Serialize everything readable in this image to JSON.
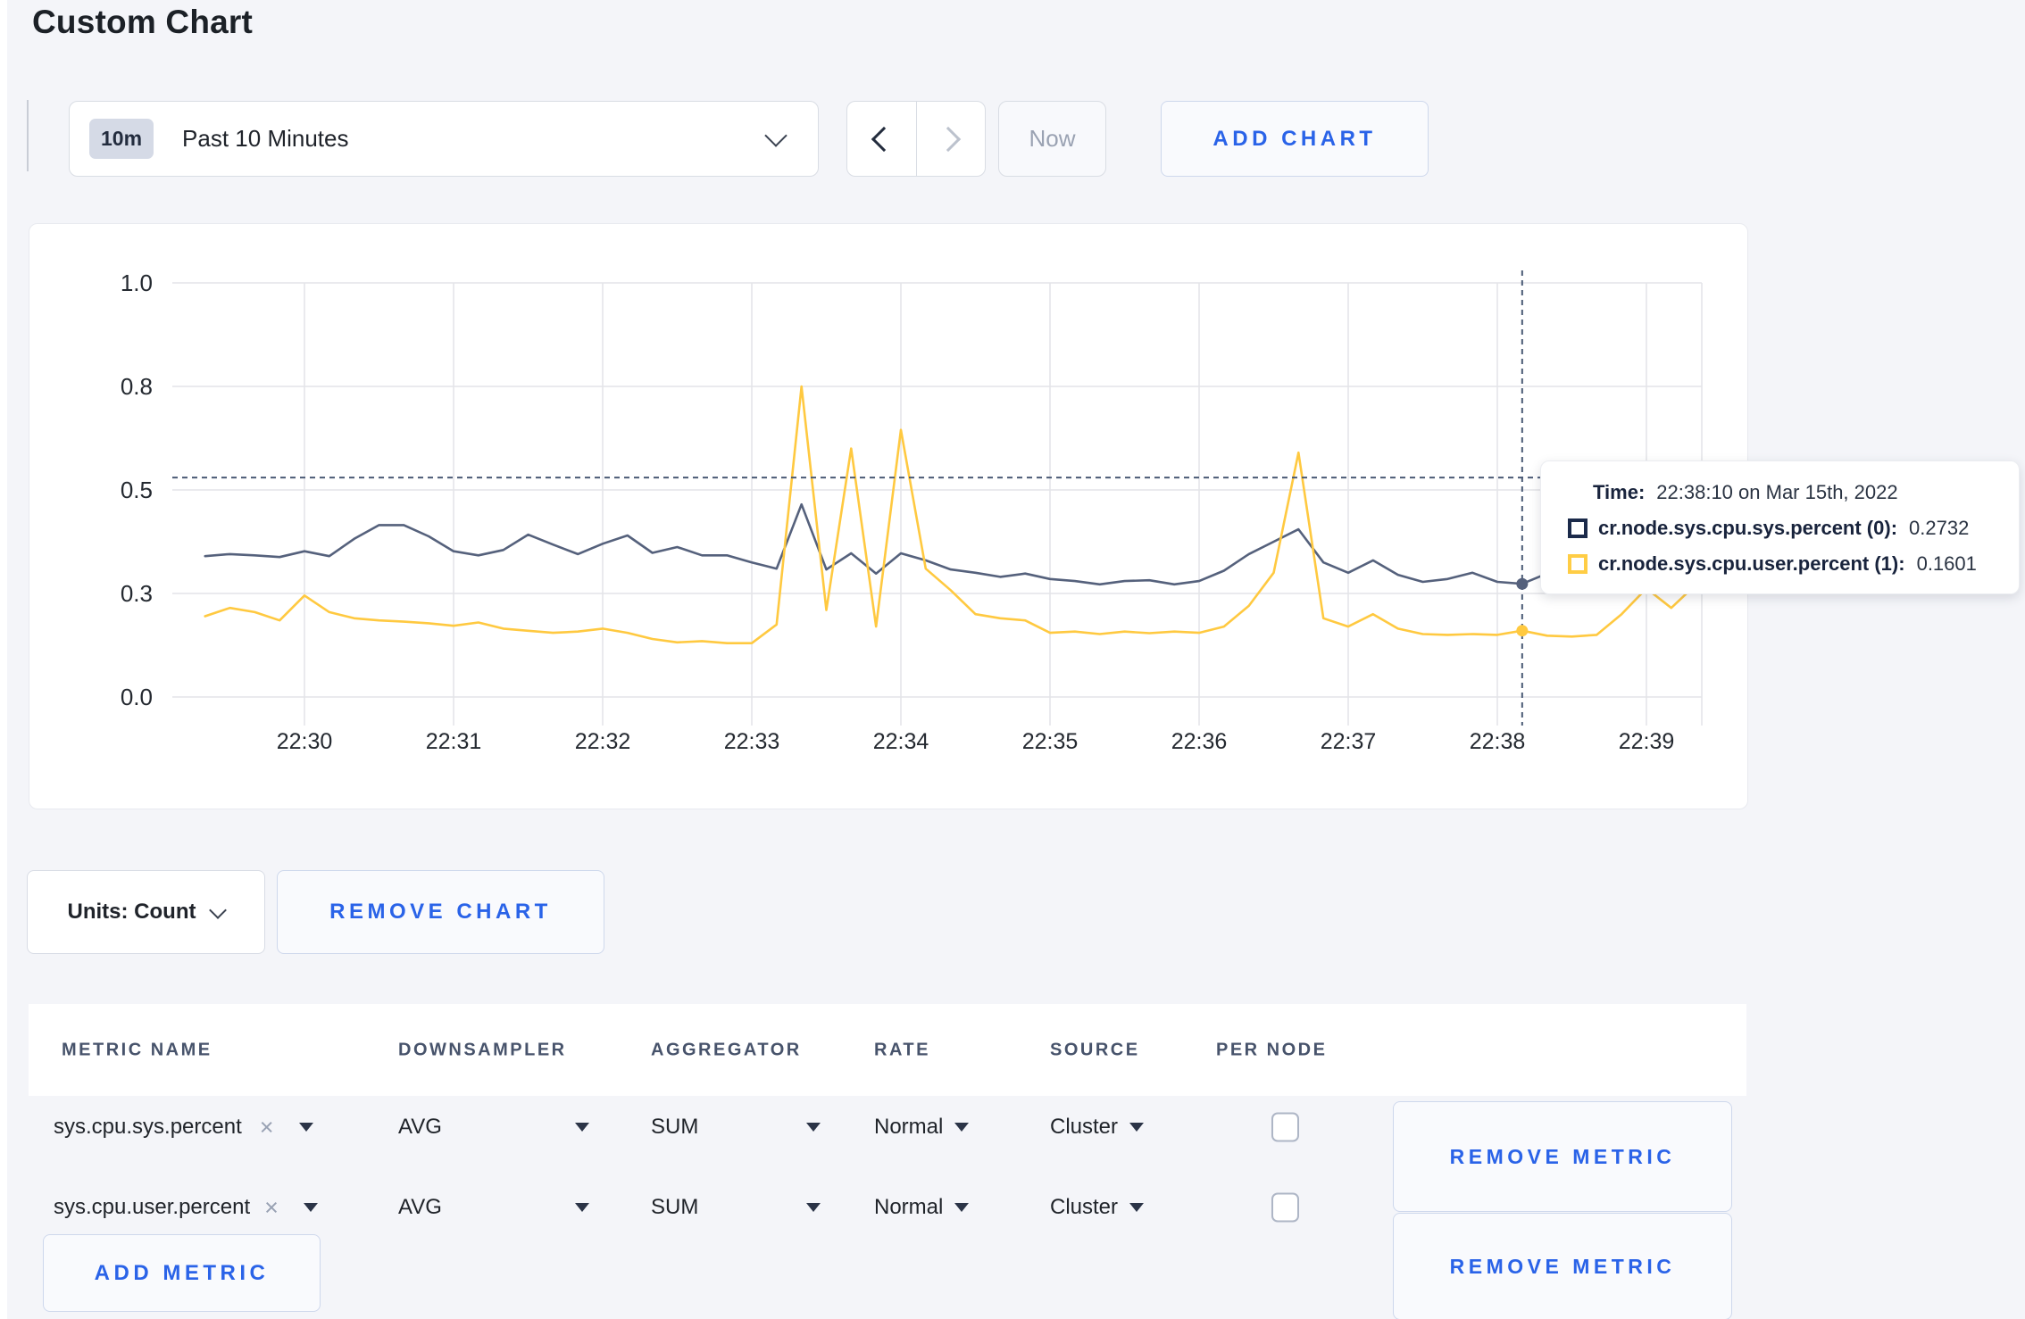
{
  "page": {
    "title": "Custom Chart"
  },
  "toolbar": {
    "time_badge": "10m",
    "time_label": "Past 10 Minutes",
    "prev_label": "previous time window",
    "next_label": "next time window",
    "now_label": "Now",
    "add_chart_label": "ADD CHART"
  },
  "chart_data": {
    "type": "line",
    "title": "",
    "xlabel": "",
    "ylabel": "",
    "ylim": [
      0,
      1
    ],
    "grid": true,
    "legend_position": "none",
    "y_ticks": [
      {
        "value": 0,
        "label": "0.0"
      },
      {
        "value": 0.25,
        "label": "0.3"
      },
      {
        "value": 0.5,
        "label": "0.5"
      },
      {
        "value": 0.75,
        "label": "0.8"
      },
      {
        "value": 1,
        "label": "1.0"
      }
    ],
    "x_tick_labels": [
      "22:30",
      "22:31",
      "22:32",
      "22:33",
      "22:34",
      "22:35",
      "22:36",
      "22:37",
      "22:38",
      "22:39"
    ],
    "x_start_time": "22:29:20",
    "x_interval_seconds": 10,
    "x_start_offset_seconds": -40,
    "series": [
      {
        "name": "cr.node.sys.cpu.sys.percent",
        "color": "#55617c",
        "values": [
          0.34,
          0.345,
          0.342,
          0.338,
          0.352,
          0.34,
          0.382,
          0.415,
          0.415,
          0.388,
          0.352,
          0.342,
          0.355,
          0.392,
          0.368,
          0.345,
          0.37,
          0.39,
          0.348,
          0.362,
          0.342,
          0.342,
          0.325,
          0.31,
          0.465,
          0.308,
          0.347,
          0.298,
          0.347,
          0.33,
          0.308,
          0.3,
          0.29,
          0.298,
          0.285,
          0.28,
          0.272,
          0.28,
          0.282,
          0.272,
          0.28,
          0.305,
          0.345,
          0.375,
          0.405,
          0.325,
          0.3,
          0.33,
          0.295,
          0.278,
          0.285,
          0.3,
          0.278,
          0.2732,
          0.298,
          0.3,
          0.296,
          0.292,
          0.29,
          0.298,
          0.31
        ]
      },
      {
        "name": "cr.node.sys.cpu.user.percent",
        "color": "#ffc940",
        "values": [
          0.195,
          0.215,
          0.205,
          0.185,
          0.245,
          0.205,
          0.19,
          0.185,
          0.182,
          0.178,
          0.172,
          0.18,
          0.165,
          0.16,
          0.155,
          0.158,
          0.165,
          0.155,
          0.14,
          0.132,
          0.135,
          0.13,
          0.13,
          0.175,
          0.75,
          0.21,
          0.6,
          0.17,
          0.645,
          0.31,
          0.258,
          0.2,
          0.19,
          0.185,
          0.155,
          0.158,
          0.152,
          0.158,
          0.154,
          0.158,
          0.155,
          0.17,
          0.22,
          0.3,
          0.59,
          0.19,
          0.17,
          0.2,
          0.165,
          0.152,
          0.15,
          0.152,
          0.15,
          0.1601,
          0.148,
          0.146,
          0.15,
          0.2,
          0.262,
          0.215,
          0.272
        ]
      }
    ],
    "crosshair": {
      "time": "22:38:10",
      "x_offset_seconds": 490,
      "hover_y_value": 0.53,
      "highlighted": [
        {
          "series": "cr.node.sys.cpu.sys.percent",
          "value": 0.2732
        },
        {
          "series": "cr.node.sys.cpu.user.percent",
          "value": 0.1601
        }
      ]
    }
  },
  "tooltip": {
    "time_label": "Time:",
    "time_value": "22:38:10 on Mar 15th, 2022",
    "rows": [
      {
        "swatch": "#1b2a4a",
        "label": "cr.node.sys.cpu.sys.percent (0):",
        "value": "0.2732"
      },
      {
        "swatch": "#ffcd45",
        "label": "cr.node.sys.cpu.user.percent (1):",
        "value": "0.1601"
      }
    ]
  },
  "units_row": {
    "units_label": "Units: Count",
    "remove_chart_label": "REMOVE CHART"
  },
  "metrics_table": {
    "headers": [
      "METRIC NAME",
      "DOWNSAMPLER",
      "AGGREGATOR",
      "RATE",
      "SOURCE",
      "PER NODE"
    ],
    "rows": [
      {
        "metric": "sys.cpu.sys.percent",
        "downsampler": "AVG",
        "aggregator": "SUM",
        "rate": "Normal",
        "source": "Cluster",
        "per_node": false,
        "remove_label": "REMOVE METRIC"
      },
      {
        "metric": "sys.cpu.user.percent",
        "downsampler": "AVG",
        "aggregator": "SUM",
        "rate": "Normal",
        "source": "Cluster",
        "per_node": false,
        "remove_label": "REMOVE METRIC"
      }
    ],
    "add_metric_label": "ADD METRIC"
  },
  "colors": {
    "accent_blue": "#2a63e8",
    "page_bg": "#f4f5f9",
    "grid_line": "#e3e4e8",
    "crosshair": "#4a5a75",
    "series_sys": "#55617c",
    "series_user": "#ffc940"
  }
}
